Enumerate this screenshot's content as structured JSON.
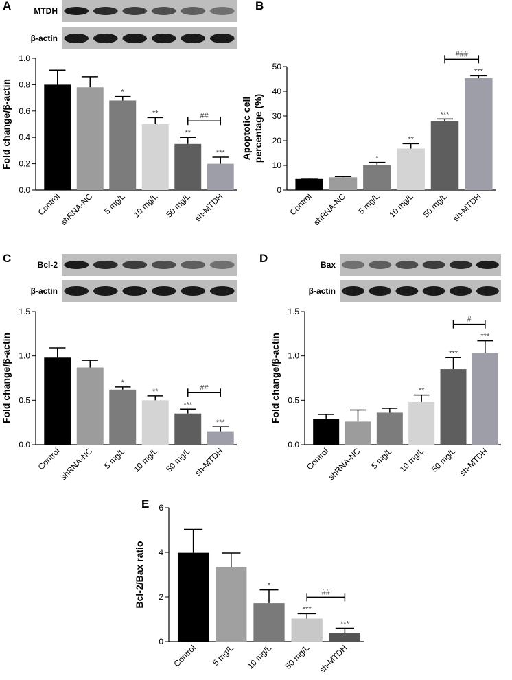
{
  "chart_data": [
    {
      "type": "bar",
      "panel": "A",
      "ylabel": "Fold change/β-actin",
      "blots": [
        "MTDH",
        "β-actin"
      ],
      "categories": [
        "Control",
        "shRNA-NC",
        "5 mg/L",
        "10 mg/L",
        "50 mg/L",
        "sh-MTDH"
      ],
      "values": [
        0.8,
        0.78,
        0.68,
        0.5,
        0.35,
        0.2
      ],
      "errors": [
        0.11,
        0.08,
        0.03,
        0.05,
        0.05,
        0.05
      ],
      "colors": [
        "#000000",
        "#9c9c9c",
        "#7c7c7c",
        "#d4d4d4",
        "#5e5e5e",
        "#9e9ea8"
      ],
      "significance": [
        null,
        null,
        "*",
        "**",
        "**",
        "***"
      ],
      "bracket": {
        "categories": [
          "50 mg/L",
          "sh-MTDH"
        ],
        "label": "##"
      },
      "ylim": [
        0,
        1.0
      ],
      "yticks": [
        {
          "value": 0,
          "label": "0.0"
        },
        0.2,
        0.4,
        0.6,
        0.8,
        {
          "value": 1.0,
          "label": "1.0"
        }
      ]
    },
    {
      "type": "bar",
      "panel": "B",
      "ylabel": [
        "Apoptotic cell",
        "percentage (%)"
      ],
      "categories": [
        "Control",
        "shRNA-NC",
        "5 mg/L",
        "10 mg/L",
        "50 mg/L",
        "sh-MTDH"
      ],
      "values": [
        4.5,
        5.2,
        10.2,
        16.8,
        28.0,
        45.3
      ],
      "errors": [
        0.3,
        0.3,
        1.0,
        2.0,
        0.8,
        1.0
      ],
      "colors": [
        "#000000",
        "#9c9c9c",
        "#7c7c7c",
        "#d4d4d4",
        "#5e5e5e",
        "#9e9ea8"
      ],
      "significance": [
        null,
        null,
        "*",
        "**",
        "***",
        "***"
      ],
      "bracket": {
        "categories": [
          "50 mg/L",
          "sh-MTDH"
        ],
        "label": "###"
      },
      "ylim": [
        0,
        50
      ],
      "yticks": [
        0,
        10,
        20,
        30,
        40,
        50
      ]
    },
    {
      "type": "bar",
      "panel": "C",
      "ylabel": "Fold change/β-actin",
      "blots": [
        "Bcl-2",
        "β-actin"
      ],
      "categories": [
        "Control",
        "shRNA-NC",
        "5 mg/L",
        "10 mg/L",
        "50 mg/L",
        "sh-MTDH"
      ],
      "values": [
        0.98,
        0.87,
        0.62,
        0.5,
        0.35,
        0.15
      ],
      "errors": [
        0.11,
        0.08,
        0.03,
        0.05,
        0.05,
        0.05
      ],
      "colors": [
        "#000000",
        "#9c9c9c",
        "#7c7c7c",
        "#d4d4d4",
        "#5e5e5e",
        "#9e9ea8"
      ],
      "significance": [
        null,
        null,
        "*",
        "**",
        "***",
        "***"
      ],
      "bracket": {
        "categories": [
          "50 mg/L",
          "sh-MTDH"
        ],
        "label": "##"
      },
      "ylim": [
        0,
        1.5
      ],
      "yticks": [
        {
          "value": 0,
          "label": "0.0"
        },
        0.5,
        {
          "value": 1.0,
          "label": "1.0"
        },
        1.5
      ]
    },
    {
      "type": "bar",
      "panel": "D",
      "ylabel": "Fold change/β-actin",
      "blots": [
        "Bax",
        "β-actin"
      ],
      "categories": [
        "Control",
        "shRNA-NC",
        "5 mg/L",
        "10 mg/L",
        "50 mg/L",
        "sh-MTDH"
      ],
      "values": [
        0.29,
        0.26,
        0.36,
        0.48,
        0.85,
        1.03
      ],
      "errors": [
        0.05,
        0.13,
        0.05,
        0.08,
        0.13,
        0.14
      ],
      "colors": [
        "#000000",
        "#9c9c9c",
        "#7c7c7c",
        "#d4d4d4",
        "#5e5e5e",
        "#9e9ea8"
      ],
      "significance": [
        null,
        null,
        null,
        "**",
        "***",
        "***"
      ],
      "bracket": {
        "categories": [
          "50 mg/L",
          "sh-MTDH"
        ],
        "label": "#"
      },
      "ylim": [
        0,
        1.5
      ],
      "yticks": [
        {
          "value": 0,
          "label": "0.0"
        },
        0.5,
        {
          "value": 1.0,
          "label": "1.0"
        },
        1.5
      ]
    },
    {
      "type": "bar",
      "panel": "E",
      "ylabel": "Bcl-2/Bax ratio",
      "categories": [
        "Control",
        "5 mg/L",
        "10 mg/L",
        "50 mg/L",
        "sh-MTDH"
      ],
      "values": [
        3.98,
        3.35,
        1.72,
        1.03,
        0.4
      ],
      "errors": [
        1.05,
        0.62,
        0.6,
        0.22,
        0.2
      ],
      "colors": [
        "#000000",
        "#a0a0a0",
        "#7a7a7a",
        "#c8c8c8",
        "#555555"
      ],
      "significance": [
        null,
        null,
        "*",
        "***",
        "***"
      ],
      "bracket": {
        "categories": [
          "50 mg/L",
          "sh-MTDH"
        ],
        "label": "##"
      },
      "ylim": [
        0,
        6
      ],
      "yticks": [
        0,
        2,
        4,
        6
      ]
    }
  ]
}
